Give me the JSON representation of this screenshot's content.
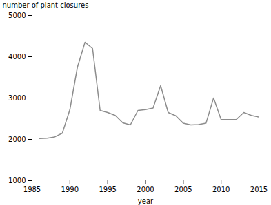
{
  "chart_data": {
    "type": "line",
    "x": [
      1986,
      1987,
      1988,
      1989,
      1990,
      1991,
      1992,
      1993,
      1994,
      1995,
      1996,
      1997,
      1998,
      1999,
      2000,
      2001,
      2002,
      2003,
      2004,
      2005,
      2006,
      2007,
      2008,
      2009,
      2010,
      2011,
      2012,
      2013,
      2014,
      2015
    ],
    "values": [
      2020,
      2030,
      2060,
      2150,
      2720,
      3750,
      4350,
      4200,
      2700,
      2650,
      2580,
      2400,
      2350,
      2700,
      2720,
      2760,
      3300,
      2650,
      2570,
      2390,
      2350,
      2360,
      2390,
      3000,
      2480,
      2480,
      2480,
      2650,
      2580,
      2540
    ],
    "color": "#8c8c8c",
    "xlabel": "year",
    "ylabel": "number of plant closures",
    "xlim": [
      1985,
      2015
    ],
    "ylim": [
      1000,
      5000
    ],
    "xticks": [
      1985,
      1990,
      1995,
      2000,
      2005,
      2010,
      2015
    ],
    "yticks": [
      1000,
      2000,
      3000,
      4000,
      5000
    ]
  }
}
